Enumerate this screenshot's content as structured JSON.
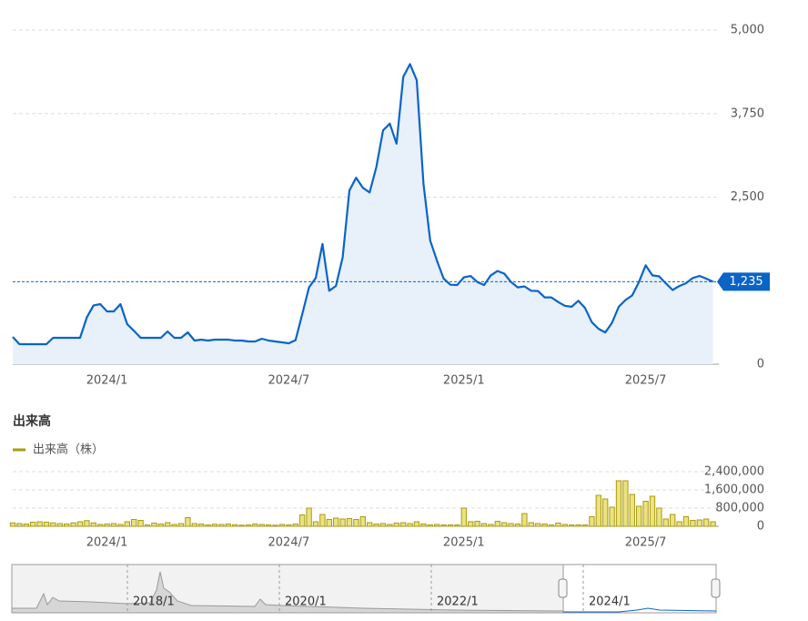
{
  "chart_data": [
    {
      "type": "area",
      "color": "#0a64c8",
      "fill": "#e8f0f9",
      "grid": true,
      "ylim": [
        0,
        5000
      ],
      "yticks": [
        0,
        {
          "value": 2500,
          "label": "2,500"
        },
        {
          "value": 3750,
          "label": "3,750"
        },
        {
          "value": 5000,
          "label": "5,000"
        }
      ],
      "last_price": {
        "value": 1235,
        "label": "1,235"
      },
      "categories": [
        null,
        null,
        null,
        null,
        null,
        null,
        null,
        null,
        null,
        null,
        null,
        null,
        null,
        null,
        "2024/1",
        null,
        null,
        null,
        null,
        null,
        null,
        null,
        null,
        null,
        null,
        null,
        null,
        null,
        null,
        null,
        null,
        null,
        null,
        null,
        null,
        null,
        null,
        null,
        null,
        null,
        null,
        "2024/7",
        null,
        null,
        null,
        null,
        null,
        null,
        null,
        null,
        null,
        null,
        null,
        null,
        null,
        null,
        null,
        null,
        null,
        null,
        null,
        null,
        null,
        null,
        null,
        null,
        null,
        "2025/1",
        null,
        null,
        null,
        null,
        null,
        null,
        null,
        null,
        null,
        null,
        null,
        null,
        null,
        null,
        null,
        null,
        null,
        null,
        null,
        null,
        null,
        null,
        null,
        null,
        null,
        null,
        "2025/7",
        null,
        null,
        null,
        null,
        null,
        null,
        null,
        null,
        null,
        null
      ],
      "values": [
        409,
        300,
        300,
        300,
        300,
        300,
        395,
        395,
        395,
        395,
        395,
        700,
        880,
        899,
        790,
        790,
        899,
        600,
        500,
        395,
        395,
        395,
        395,
        490,
        395,
        395,
        477,
        354,
        368,
        354,
        368,
        368,
        368,
        354,
        354,
        340,
        340,
        381,
        354,
        340,
        327,
        313,
        360,
        750,
        1150,
        1290,
        1800,
        1100,
        1171,
        1600,
        2600,
        2790,
        2640,
        2570,
        2950,
        3500,
        3600,
        3300,
        4300,
        4490,
        4250,
        2700,
        1850,
        1550,
        1280,
        1190,
        1185,
        1300,
        1320,
        1230,
        1185,
        1330,
        1395,
        1355,
        1230,
        1150,
        1165,
        1100,
        1095,
        1000,
        1000,
        930,
        875,
        860,
        950,
        840,
        630,
        530,
        475,
        620,
        860,
        960,
        1030,
        1230,
        1480,
        1330,
        1315,
        1210,
        1110,
        1170,
        1213,
        1290,
        1322,
        1280,
        1235
      ]
    },
    {
      "type": "bar",
      "title": "出来高",
      "grid": true,
      "ylim": [
        0,
        2400000
      ],
      "yticks": [
        0,
        {
          "value": 800000,
          "label": "800,000"
        },
        {
          "value": 1600000,
          "label": "1,600,000"
        },
        {
          "value": 2400000,
          "label": "2,400,000"
        }
      ],
      "categories": [
        null,
        null,
        null,
        null,
        null,
        null,
        null,
        null,
        null,
        null,
        null,
        null,
        null,
        null,
        "2024/1",
        null,
        null,
        null,
        null,
        null,
        null,
        null,
        null,
        null,
        null,
        null,
        null,
        null,
        null,
        null,
        null,
        null,
        null,
        null,
        null,
        null,
        null,
        null,
        null,
        null,
        null,
        "2024/7",
        null,
        null,
        null,
        null,
        null,
        null,
        null,
        null,
        null,
        null,
        null,
        null,
        null,
        null,
        null,
        null,
        null,
        null,
        null,
        null,
        null,
        null,
        null,
        null,
        null,
        "2025/1",
        null,
        null,
        null,
        null,
        null,
        null,
        null,
        null,
        null,
        null,
        null,
        null,
        null,
        null,
        null,
        null,
        null,
        null,
        null,
        null,
        null,
        null,
        null,
        null,
        null,
        null,
        "2025/7",
        null,
        null,
        null,
        null,
        null,
        null,
        null,
        null,
        null,
        null
      ],
      "series": [
        {
          "name": "出来高（株）",
          "color": "#a89b14",
          "fill": "#ece27e",
          "values": [
            150000,
            120000,
            100000,
            180000,
            200000,
            180000,
            150000,
            120000,
            100000,
            150000,
            200000,
            250000,
            150000,
            80000,
            100000,
            120000,
            80000,
            200000,
            300000,
            260000,
            60000,
            140000,
            100000,
            160000,
            80000,
            120000,
            380000,
            120000,
            100000,
            60000,
            90000,
            80000,
            100000,
            70000,
            50000,
            60000,
            100000,
            80000,
            60000,
            50000,
            80000,
            60000,
            100000,
            500000,
            800000,
            200000,
            520000,
            300000,
            360000,
            320000,
            340000,
            300000,
            420000,
            160000,
            100000,
            120000,
            80000,
            140000,
            160000,
            120000,
            200000,
            100000,
            60000,
            80000,
            60000,
            60000,
            60000,
            800000,
            200000,
            220000,
            120000,
            80000,
            220000,
            160000,
            120000,
            100000,
            560000,
            160000,
            120000,
            100000,
            60000,
            140000,
            80000,
            60000,
            60000,
            60000,
            420000,
            1360000,
            1200000,
            840000,
            2000000,
            2000000,
            1400000,
            880000,
            1100000,
            1320000,
            800000,
            320000,
            520000,
            200000,
            420000,
            260000,
            280000,
            320000,
            200000
          ]
        }
      ]
    }
  ],
  "navigator": {
    "labels": [
      "2018/1",
      "2020/1",
      "2022/1",
      "2024/1"
    ]
  }
}
